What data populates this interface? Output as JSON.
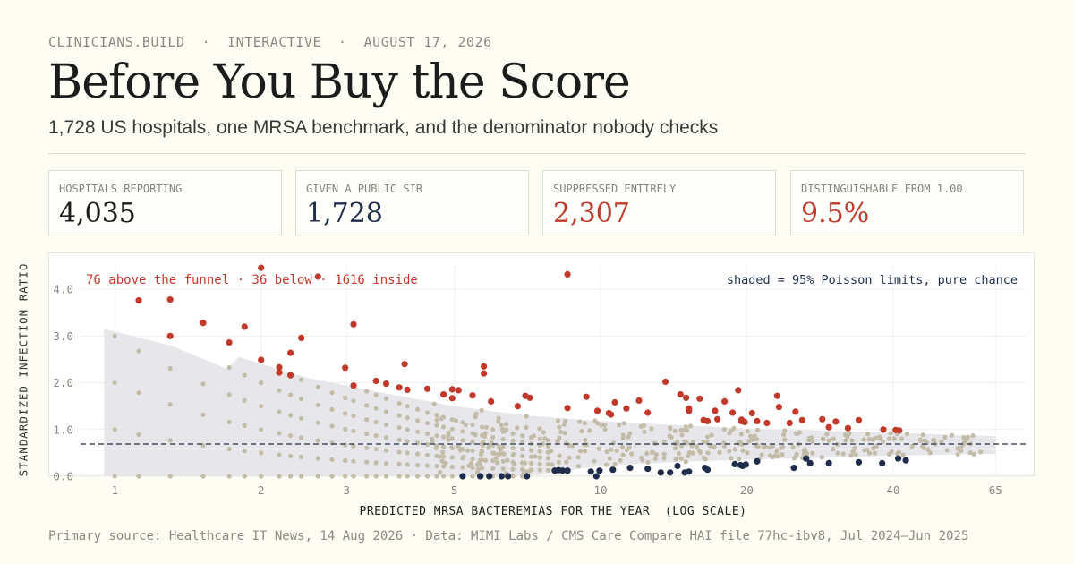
{
  "header": {
    "kicker": "CLINICIANS.BUILD  ·  INTERACTIVE  ·  AUGUST 17, 2026",
    "title": "Before You Buy the Score",
    "subtitle": "1,728 US hospitals, one MRSA benchmark, and the denominator nobody checks"
  },
  "stats": [
    {
      "label": "HOSPITALS REPORTING",
      "value": "4,035",
      "color": "#1c1c1c"
    },
    {
      "label": "GIVEN A PUBLIC SIR",
      "value": "1,728",
      "color": "#1f2d4a"
    },
    {
      "label": "SUPPRESSED ENTIRELY",
      "value": "2,307",
      "color": "#c0392b"
    },
    {
      "label": "DISTINGUISHABLE FROM 1.00",
      "value": "9.5%",
      "color": "#c0392b"
    }
  ],
  "chart_data": {
    "type": "scatter",
    "xlabel": "PREDICTED MRSA BACTEREMIAS FOR THE YEAR  (LOG SCALE)",
    "ylabel": "STANDARDIZED INFECTION RATIO",
    "x_scale": "log",
    "xlim": [
      0.85,
      75
    ],
    "ylim": [
      0,
      4.5
    ],
    "x_ticks": [
      "1",
      "2",
      "3",
      "5",
      "10",
      "20",
      "40",
      "65"
    ],
    "y_ticks": [
      "0.0",
      "1.0",
      "2.0",
      "3.0",
      "4.0"
    ],
    "reference_line_y": 0.69,
    "annotation_left": "76 above the funnel · 36 below · 1616 inside",
    "annotation_right": "shaded = 95% Poisson limits, pure chance",
    "colors": {
      "above": "#c0392b",
      "below": "#1f2d4a",
      "inside": "#c2bca9",
      "band": "#e6e6ea",
      "reference": "#1f2d4a"
    },
    "funnel_upper": [
      [
        0.95,
        3.15
      ],
      [
        1.3,
        2.8
      ],
      [
        1.7,
        2.3
      ],
      [
        1.8,
        2.55
      ],
      [
        2.5,
        2.1
      ],
      [
        3.5,
        1.8
      ],
      [
        5,
        1.5
      ],
      [
        7,
        1.3
      ],
      [
        10,
        1.18
      ],
      [
        14,
        1.1
      ],
      [
        20,
        1.02
      ],
      [
        30,
        0.97
      ],
      [
        40,
        0.93
      ],
      [
        65,
        0.86
      ]
    ],
    "funnel_lower": [
      [
        0.95,
        0
      ],
      [
        7,
        0
      ],
      [
        10,
        0.22
      ],
      [
        14,
        0.3
      ],
      [
        20,
        0.36
      ],
      [
        30,
        0.4
      ],
      [
        40,
        0.44
      ],
      [
        65,
        0.48
      ]
    ],
    "above": [
      [
        1.12,
        3.76
      ],
      [
        1.3,
        3.78
      ],
      [
        1.3,
        3.0
      ],
      [
        1.52,
        3.28
      ],
      [
        1.72,
        2.86
      ],
      [
        1.85,
        3.2
      ],
      [
        2.0,
        4.46
      ],
      [
        2.0,
        2.49
      ],
      [
        2.18,
        2.33
      ],
      [
        2.18,
        2.22
      ],
      [
        2.3,
        2.64
      ],
      [
        2.3,
        2.16
      ],
      [
        2.42,
        2.96
      ],
      [
        2.62,
        4.27
      ],
      [
        2.98,
        2.32
      ],
      [
        3.1,
        3.25
      ],
      [
        3.1,
        1.94
      ],
      [
        3.45,
        2.04
      ],
      [
        3.62,
        1.98
      ],
      [
        3.85,
        1.9
      ],
      [
        3.95,
        2.4
      ],
      [
        4.0,
        1.85
      ],
      [
        4.4,
        1.87
      ],
      [
        4.75,
        1.75
      ],
      [
        4.95,
        1.86
      ],
      [
        4.95,
        1.67
      ],
      [
        5.1,
        1.84
      ],
      [
        5.45,
        1.73
      ],
      [
        5.75,
        2.35
      ],
      [
        5.75,
        2.2
      ],
      [
        5.95,
        1.6
      ],
      [
        6.75,
        1.5
      ],
      [
        7.0,
        1.72
      ],
      [
        7.15,
        1.68
      ],
      [
        8.55,
        4.32
      ],
      [
        8.55,
        1.46
      ],
      [
        9.35,
        1.7
      ],
      [
        9.85,
        1.4
      ],
      [
        10.4,
        1.35
      ],
      [
        10.5,
        1.32
      ],
      [
        10.7,
        1.58
      ],
      [
        11.3,
        1.45
      ],
      [
        12.0,
        1.62
      ],
      [
        12.5,
        1.36
      ],
      [
        13.6,
        2.02
      ],
      [
        14.6,
        1.75
      ],
      [
        15.0,
        1.68
      ],
      [
        15.2,
        1.45
      ],
      [
        15.2,
        1.4
      ],
      [
        16.0,
        1.66
      ],
      [
        16.3,
        1.2
      ],
      [
        16.6,
        1.18
      ],
      [
        17.2,
        1.4
      ],
      [
        17.4,
        1.22
      ],
      [
        18.0,
        1.6
      ],
      [
        18.7,
        1.36
      ],
      [
        19.2,
        1.84
      ],
      [
        19.5,
        1.21
      ],
      [
        19.5,
        1.18
      ],
      [
        19.8,
        1.16
      ],
      [
        20.5,
        1.35
      ],
      [
        21.0,
        1.18
      ],
      [
        22.0,
        1.14
      ],
      [
        23.1,
        1.72
      ],
      [
        23.3,
        1.48
      ],
      [
        24.5,
        1.14
      ],
      [
        25.2,
        1.38
      ],
      [
        26.0,
        1.2
      ],
      [
        28.6,
        1.22
      ],
      [
        29.5,
        1.05
      ],
      [
        30.5,
        1.17
      ],
      [
        32.3,
        1.03
      ],
      [
        34.0,
        1.2
      ],
      [
        38.2,
        1.0
      ],
      [
        40.5,
        0.99
      ],
      [
        41.2,
        0.98
      ]
    ],
    "below": [
      [
        5.2,
        0.0
      ],
      [
        5.65,
        0.0
      ],
      [
        5.9,
        0.0
      ],
      [
        6.25,
        0.0
      ],
      [
        6.45,
        0.0
      ],
      [
        7.05,
        0.0
      ],
      [
        8.05,
        0.12
      ],
      [
        8.2,
        0.13
      ],
      [
        8.35,
        0.12
      ],
      [
        8.55,
        0.12
      ],
      [
        9.55,
        0.1
      ],
      [
        9.8,
        0.0
      ],
      [
        9.95,
        0.12
      ],
      [
        10.6,
        0.14
      ],
      [
        11.5,
        0.18
      ],
      [
        12.5,
        0.16
      ],
      [
        13.3,
        0.08
      ],
      [
        13.9,
        0.08
      ],
      [
        14.4,
        0.22
      ],
      [
        14.9,
        0.08
      ],
      [
        15.2,
        0.1
      ],
      [
        16.4,
        0.18
      ],
      [
        16.6,
        0.14
      ],
      [
        18.9,
        0.26
      ],
      [
        19.4,
        0.24
      ],
      [
        19.6,
        0.22
      ],
      [
        19.9,
        0.25
      ],
      [
        21.0,
        0.32
      ],
      [
        25.0,
        0.18
      ],
      [
        26.5,
        0.38
      ],
      [
        27.0,
        0.28
      ],
      [
        29.5,
        0.28
      ],
      [
        34.0,
        0.3
      ],
      [
        38.0,
        0.28
      ],
      [
        41.0,
        0.38
      ],
      [
        42.5,
        0.34
      ]
    ]
  },
  "source": "Primary source: Healthcare IT News, 14 Aug 2026 · Data: MIMI Labs / CMS Care Compare HAI file 77hc-ibv8, Jul 2024–Jun 2025"
}
